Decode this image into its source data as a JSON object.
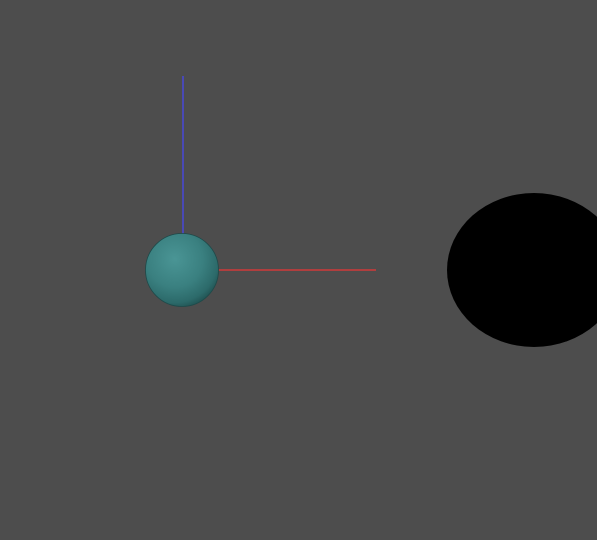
{
  "viewport": {
    "background_color": "#4d4d4d",
    "objects": [
      {
        "name": "sphere",
        "kind": "shaded-sphere",
        "color": "#3f8585"
      },
      {
        "name": "x-axis",
        "kind": "axis-line",
        "color": "#d23a3a"
      },
      {
        "name": "z-axis",
        "kind": "axis-line",
        "color": "#4848d8"
      },
      {
        "name": "black-ellipse",
        "kind": "solid-shape",
        "color": "#000000"
      }
    ]
  }
}
